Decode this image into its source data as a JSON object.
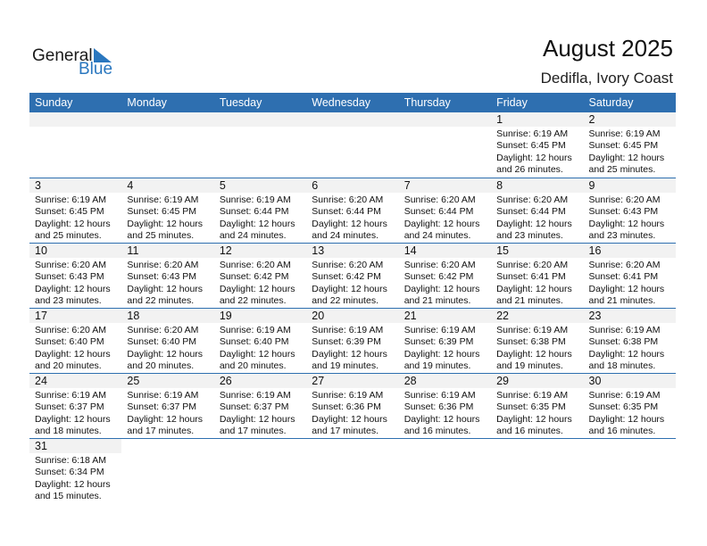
{
  "logo": {
    "line1": "General",
    "line2": "Blue"
  },
  "header": {
    "title": "August 2025",
    "location": "Dedifla, Ivory Coast"
  },
  "weekdays": [
    "Sunday",
    "Monday",
    "Tuesday",
    "Wednesday",
    "Thursday",
    "Friday",
    "Saturday"
  ],
  "colors": {
    "accent": "#2e6fb0",
    "band": "#f2f2f2"
  },
  "first_weekday_index": 5,
  "days": [
    {
      "day": "1",
      "sunrise": "Sunrise: 6:19 AM",
      "sunset": "Sunset: 6:45 PM",
      "d1": "Daylight: 12 hours",
      "d2": "and 26 minutes."
    },
    {
      "day": "2",
      "sunrise": "Sunrise: 6:19 AM",
      "sunset": "Sunset: 6:45 PM",
      "d1": "Daylight: 12 hours",
      "d2": "and 25 minutes."
    },
    {
      "day": "3",
      "sunrise": "Sunrise: 6:19 AM",
      "sunset": "Sunset: 6:45 PM",
      "d1": "Daylight: 12 hours",
      "d2": "and 25 minutes."
    },
    {
      "day": "4",
      "sunrise": "Sunrise: 6:19 AM",
      "sunset": "Sunset: 6:45 PM",
      "d1": "Daylight: 12 hours",
      "d2": "and 25 minutes."
    },
    {
      "day": "5",
      "sunrise": "Sunrise: 6:19 AM",
      "sunset": "Sunset: 6:44 PM",
      "d1": "Daylight: 12 hours",
      "d2": "and 24 minutes."
    },
    {
      "day": "6",
      "sunrise": "Sunrise: 6:20 AM",
      "sunset": "Sunset: 6:44 PM",
      "d1": "Daylight: 12 hours",
      "d2": "and 24 minutes."
    },
    {
      "day": "7",
      "sunrise": "Sunrise: 6:20 AM",
      "sunset": "Sunset: 6:44 PM",
      "d1": "Daylight: 12 hours",
      "d2": "and 24 minutes."
    },
    {
      "day": "8",
      "sunrise": "Sunrise: 6:20 AM",
      "sunset": "Sunset: 6:44 PM",
      "d1": "Daylight: 12 hours",
      "d2": "and 23 minutes."
    },
    {
      "day": "9",
      "sunrise": "Sunrise: 6:20 AM",
      "sunset": "Sunset: 6:43 PM",
      "d1": "Daylight: 12 hours",
      "d2": "and 23 minutes."
    },
    {
      "day": "10",
      "sunrise": "Sunrise: 6:20 AM",
      "sunset": "Sunset: 6:43 PM",
      "d1": "Daylight: 12 hours",
      "d2": "and 23 minutes."
    },
    {
      "day": "11",
      "sunrise": "Sunrise: 6:20 AM",
      "sunset": "Sunset: 6:43 PM",
      "d1": "Daylight: 12 hours",
      "d2": "and 22 minutes."
    },
    {
      "day": "12",
      "sunrise": "Sunrise: 6:20 AM",
      "sunset": "Sunset: 6:42 PM",
      "d1": "Daylight: 12 hours",
      "d2": "and 22 minutes."
    },
    {
      "day": "13",
      "sunrise": "Sunrise: 6:20 AM",
      "sunset": "Sunset: 6:42 PM",
      "d1": "Daylight: 12 hours",
      "d2": "and 22 minutes."
    },
    {
      "day": "14",
      "sunrise": "Sunrise: 6:20 AM",
      "sunset": "Sunset: 6:42 PM",
      "d1": "Daylight: 12 hours",
      "d2": "and 21 minutes."
    },
    {
      "day": "15",
      "sunrise": "Sunrise: 6:20 AM",
      "sunset": "Sunset: 6:41 PM",
      "d1": "Daylight: 12 hours",
      "d2": "and 21 minutes."
    },
    {
      "day": "16",
      "sunrise": "Sunrise: 6:20 AM",
      "sunset": "Sunset: 6:41 PM",
      "d1": "Daylight: 12 hours",
      "d2": "and 21 minutes."
    },
    {
      "day": "17",
      "sunrise": "Sunrise: 6:20 AM",
      "sunset": "Sunset: 6:40 PM",
      "d1": "Daylight: 12 hours",
      "d2": "and 20 minutes."
    },
    {
      "day": "18",
      "sunrise": "Sunrise: 6:20 AM",
      "sunset": "Sunset: 6:40 PM",
      "d1": "Daylight: 12 hours",
      "d2": "and 20 minutes."
    },
    {
      "day": "19",
      "sunrise": "Sunrise: 6:19 AM",
      "sunset": "Sunset: 6:40 PM",
      "d1": "Daylight: 12 hours",
      "d2": "and 20 minutes."
    },
    {
      "day": "20",
      "sunrise": "Sunrise: 6:19 AM",
      "sunset": "Sunset: 6:39 PM",
      "d1": "Daylight: 12 hours",
      "d2": "and 19 minutes."
    },
    {
      "day": "21",
      "sunrise": "Sunrise: 6:19 AM",
      "sunset": "Sunset: 6:39 PM",
      "d1": "Daylight: 12 hours",
      "d2": "and 19 minutes."
    },
    {
      "day": "22",
      "sunrise": "Sunrise: 6:19 AM",
      "sunset": "Sunset: 6:38 PM",
      "d1": "Daylight: 12 hours",
      "d2": "and 19 minutes."
    },
    {
      "day": "23",
      "sunrise": "Sunrise: 6:19 AM",
      "sunset": "Sunset: 6:38 PM",
      "d1": "Daylight: 12 hours",
      "d2": "and 18 minutes."
    },
    {
      "day": "24",
      "sunrise": "Sunrise: 6:19 AM",
      "sunset": "Sunset: 6:37 PM",
      "d1": "Daylight: 12 hours",
      "d2": "and 18 minutes."
    },
    {
      "day": "25",
      "sunrise": "Sunrise: 6:19 AM",
      "sunset": "Sunset: 6:37 PM",
      "d1": "Daylight: 12 hours",
      "d2": "and 17 minutes."
    },
    {
      "day": "26",
      "sunrise": "Sunrise: 6:19 AM",
      "sunset": "Sunset: 6:37 PM",
      "d1": "Daylight: 12 hours",
      "d2": "and 17 minutes."
    },
    {
      "day": "27",
      "sunrise": "Sunrise: 6:19 AM",
      "sunset": "Sunset: 6:36 PM",
      "d1": "Daylight: 12 hours",
      "d2": "and 17 minutes."
    },
    {
      "day": "28",
      "sunrise": "Sunrise: 6:19 AM",
      "sunset": "Sunset: 6:36 PM",
      "d1": "Daylight: 12 hours",
      "d2": "and 16 minutes."
    },
    {
      "day": "29",
      "sunrise": "Sunrise: 6:19 AM",
      "sunset": "Sunset: 6:35 PM",
      "d1": "Daylight: 12 hours",
      "d2": "and 16 minutes."
    },
    {
      "day": "30",
      "sunrise": "Sunrise: 6:19 AM",
      "sunset": "Sunset: 6:35 PM",
      "d1": "Daylight: 12 hours",
      "d2": "and 16 minutes."
    },
    {
      "day": "31",
      "sunrise": "Sunrise: 6:18 AM",
      "sunset": "Sunset: 6:34 PM",
      "d1": "Daylight: 12 hours",
      "d2": "and 15 minutes."
    }
  ]
}
